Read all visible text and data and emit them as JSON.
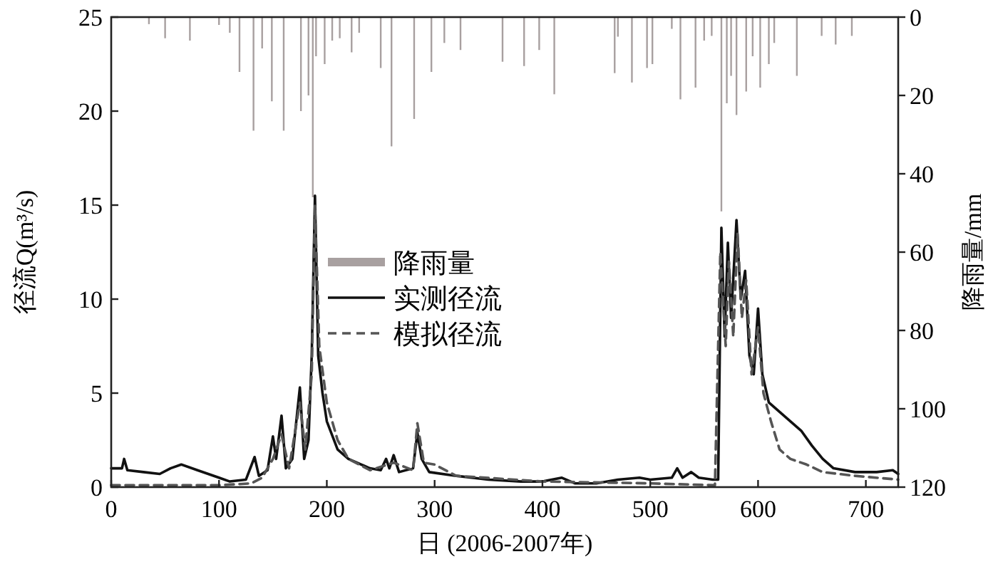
{
  "chart_data": {
    "type": "line",
    "xlabel": "日 (2006-2007年)",
    "ylabel": "径流Q(m³/s)",
    "y2label": "降雨量/mm",
    "xlim": [
      0,
      730
    ],
    "xticks": [
      0,
      100,
      200,
      300,
      400,
      500,
      600,
      700
    ],
    "ylim": [
      0,
      25
    ],
    "yticks": [
      0,
      5,
      10,
      15,
      20,
      25
    ],
    "y2lim": [
      120,
      0
    ],
    "y2ticks": [
      0,
      20,
      40,
      60,
      80,
      100,
      120
    ],
    "legend": "center",
    "grid": false,
    "series": [
      {
        "name": "降雨量",
        "type": "bar",
        "axis": "y2",
        "color": "#a8a0a0",
        "x": [
          35,
          50,
          73,
          100,
          110,
          119,
          132,
          140,
          149,
          160,
          176,
          183,
          187,
          190,
          198,
          205,
          212,
          223,
          230,
          250,
          260,
          281,
          297,
          309,
          324,
          363,
          383,
          397,
          411,
          467,
          470,
          483,
          497,
          502,
          520,
          528,
          542,
          550,
          557,
          566,
          571,
          575,
          580,
          589,
          595,
          602,
          610,
          615,
          636,
          659,
          672,
          687
        ],
        "values": [
          1.8,
          5.4,
          6,
          2,
          4,
          14,
          29,
          8,
          21.5,
          29,
          24,
          20,
          46,
          10,
          12,
          6,
          5.4,
          9,
          4,
          13,
          33,
          26,
          14,
          6.6,
          8.4,
          11.4,
          12.5,
          8.4,
          19.7,
          14.3,
          5,
          16.7,
          13,
          12,
          3,
          21,
          18,
          6,
          4.8,
          49.6,
          22,
          15,
          25,
          19,
          10,
          18,
          12,
          6.6,
          15,
          4.8,
          7,
          4.8
        ]
      },
      {
        "name": "实测径流",
        "color": "#111111",
        "line_style": "solid",
        "x": [
          0,
          10,
          12,
          15,
          30,
          45,
          55,
          65,
          80,
          100,
          110,
          125,
          133,
          137,
          145,
          150,
          153,
          158,
          162,
          168,
          175,
          179,
          183,
          186,
          189,
          192,
          196,
          200,
          210,
          220,
          240,
          250,
          255,
          258,
          262,
          267,
          280,
          284,
          288,
          295,
          320,
          350,
          380,
          400,
          418,
          430,
          450,
          470,
          490,
          500,
          520,
          525,
          530,
          538,
          545,
          558,
          563,
          566,
          569,
          572,
          575,
          580,
          584,
          588,
          592,
          596,
          600,
          604,
          610,
          620,
          630,
          640,
          650,
          660,
          670,
          690,
          710,
          725,
          730
        ],
        "values": [
          1.0,
          1.0,
          1.5,
          0.9,
          0.8,
          0.7,
          1.0,
          1.2,
          0.9,
          0.5,
          0.3,
          0.4,
          1.6,
          0.6,
          0.9,
          2.7,
          1.5,
          3.8,
          1.0,
          1.5,
          5.3,
          1.5,
          2.5,
          7,
          15.5,
          7,
          5,
          3.5,
          2.0,
          1.5,
          1.0,
          0.9,
          1.5,
          1.0,
          1.7,
          0.8,
          1.0,
          2.9,
          1.5,
          0.8,
          0.6,
          0.4,
          0.3,
          0.3,
          0.5,
          0.2,
          0.2,
          0.4,
          0.5,
          0.4,
          0.5,
          1.0,
          0.5,
          0.8,
          0.5,
          0.4,
          0.4,
          13.8,
          8,
          13,
          9,
          14.2,
          10,
          11.5,
          7,
          6,
          9.5,
          6,
          4.5,
          4.0,
          3.5,
          3.0,
          2.2,
          1.5,
          1.0,
          0.8,
          0.8,
          0.9,
          0.7
        ]
      },
      {
        "name": "模拟径流",
        "color": "#555555",
        "line_style": "dashed",
        "x": [
          0,
          50,
          100,
          130,
          140,
          150,
          158,
          165,
          175,
          180,
          186,
          189,
          193,
          200,
          210,
          220,
          240,
          262,
          280,
          284,
          290,
          300,
          320,
          400,
          500,
          560,
          565,
          570,
          573,
          577,
          581,
          585,
          589,
          594,
          600,
          605,
          612,
          620,
          630,
          645,
          660,
          690,
          730
        ],
        "values": [
          0.1,
          0.1,
          0.1,
          0.2,
          0.5,
          1.5,
          2.8,
          1.0,
          4.5,
          2,
          6,
          15.0,
          7.5,
          4.5,
          2.5,
          1.5,
          0.9,
          1.3,
          0.9,
          3.4,
          1.3,
          1.2,
          0.6,
          0.3,
          0.2,
          0.1,
          12.5,
          7.5,
          12,
          8,
          13.5,
          9,
          11,
          6,
          8.5,
          5,
          3.5,
          2.0,
          1.5,
          1.2,
          0.8,
          0.6,
          0.4
        ]
      }
    ]
  }
}
